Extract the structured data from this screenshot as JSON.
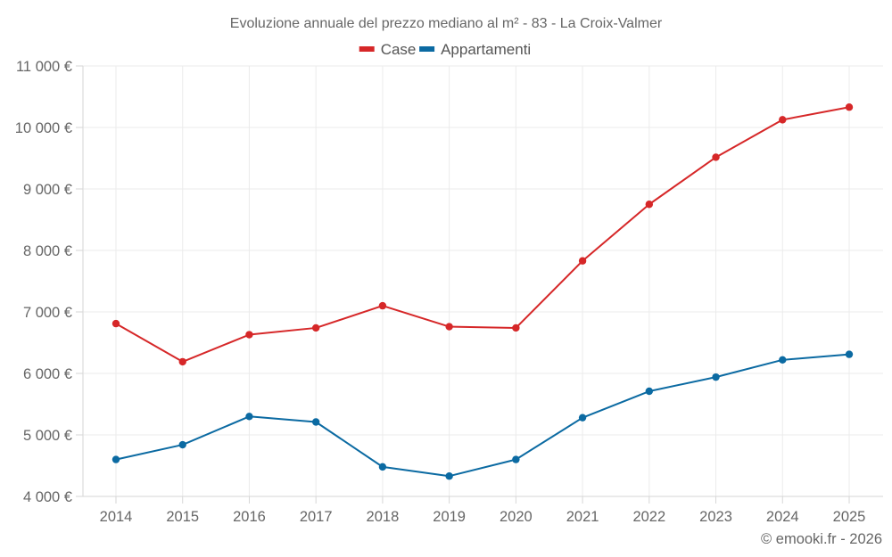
{
  "chart_data": {
    "type": "line",
    "title": "Evoluzione annuale del prezzo mediano al m² - 83 - La Croix-Valmer",
    "xlabel": "",
    "ylabel": "",
    "x": [
      "2014",
      "2015",
      "2016",
      "2017",
      "2018",
      "2019",
      "2020",
      "2021",
      "2022",
      "2023",
      "2024",
      "2025"
    ],
    "ylim": [
      4000,
      11000
    ],
    "yticks": [
      4000,
      5000,
      6000,
      7000,
      8000,
      9000,
      10000,
      11000
    ],
    "ytick_labels": [
      "4 000 €",
      "5 000 €",
      "6 000 €",
      "7 000 €",
      "8 000 €",
      "9 000 €",
      "10 000 €",
      "11 000 €"
    ],
    "grid": true,
    "legend_position": "top-center",
    "series": [
      {
        "name": "Case",
        "color": "#d62728",
        "values": [
          6810,
          6190,
          6630,
          6740,
          7100,
          6760,
          6740,
          7830,
          8750,
          9515,
          10125,
          10330
        ]
      },
      {
        "name": "Appartamenti",
        "color": "#0b6aa2",
        "values": [
          4600,
          4840,
          5300,
          5210,
          4480,
          4330,
          4600,
          5280,
          5710,
          5940,
          6220,
          6310
        ]
      }
    ],
    "credit": "© emooki.fr - 2026"
  }
}
